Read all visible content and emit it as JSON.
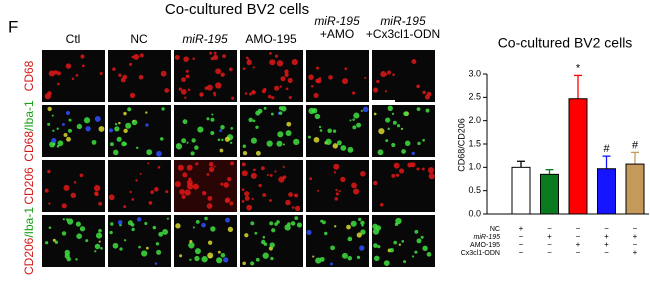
{
  "figure": {
    "panel": "F",
    "title": "Co-cultured BV2 cells",
    "columns": [
      [
        "Ctl"
      ],
      [
        "NC"
      ],
      [
        "miR-195"
      ],
      [
        "AMO-195"
      ],
      [
        "miR-195",
        "+AMO"
      ],
      [
        "miR-195",
        "+Cx3cl1-ODN"
      ]
    ],
    "rows": [
      [
        "CD68"
      ],
      [
        "CD68",
        "/Iba-1"
      ],
      [
        "CD206"
      ],
      [
        "CD206",
        "/Iba-1"
      ]
    ]
  },
  "chart_data": {
    "type": "bar",
    "title": "Co-cultured BV2 cells",
    "y_label": "CD68/CD206",
    "categories": [
      null,
      null,
      null,
      null,
      null
    ],
    "values": [
      1.0,
      0.85,
      2.47,
      0.97,
      1.07
    ],
    "errors": [
      0.13,
      0.1,
      0.5,
      0.27,
      0.25
    ],
    "colors": [
      "#ffffff",
      "#0a7a1e",
      "#ff0000",
      "#1515ff",
      "#c49a5a"
    ],
    "ylim": [
      0,
      3
    ],
    "yticks": [
      {
        "value": 0,
        "label": "0.0"
      },
      {
        "value": 0.5,
        "label": "0.5"
      },
      {
        "value": 1,
        "label": "1.0"
      },
      {
        "value": 1.5,
        "label": "1.5"
      },
      {
        "value": 2,
        "label": "2.0"
      },
      {
        "value": 2.5,
        "label": "2.5"
      },
      {
        "value": 3,
        "label": "3.0"
      }
    ],
    "annotations": [
      {
        "category": 2,
        "text": "*"
      },
      {
        "category": 3,
        "text": "#"
      },
      {
        "category": 4,
        "text": "#"
      }
    ],
    "treatments": [
      {
        "name": "NC",
        "signs": [
          "+",
          "−",
          "−",
          "−",
          "−"
        ]
      },
      {
        "name": "miR-195",
        "signs": [
          "−",
          "+",
          "−",
          "+",
          "+"
        ]
      },
      {
        "name": "AMO-195",
        "signs": [
          "−",
          "−",
          "+",
          "+",
          "−"
        ]
      },
      {
        "name": "Cx3cl1-ODN",
        "signs": [
          "−",
          "−",
          "−",
          "−",
          "+"
        ]
      }
    ]
  }
}
